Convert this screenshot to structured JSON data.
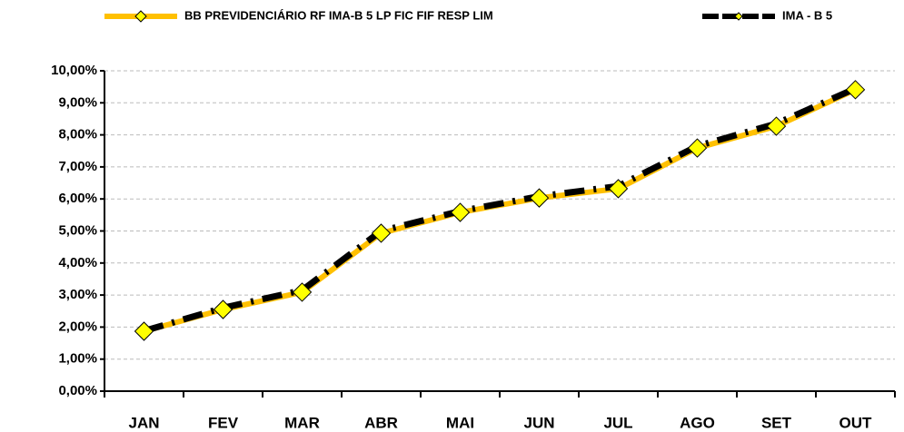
{
  "chart_data": {
    "type": "line",
    "categories": [
      "JAN",
      "FEV",
      "MAR",
      "ABR",
      "MAI",
      "JUN",
      "JUL",
      "AGO",
      "SET",
      "OUT"
    ],
    "series": [
      {
        "name": "BB PREVIDENCIÁRIO RF IMA-B 5 LP FIC FIF RESP LIM",
        "color": "#FFC000",
        "marker": "diamond",
        "marker_color": "#FFFF00",
        "values": [
          1.87,
          2.55,
          3.09,
          4.93,
          5.58,
          6.03,
          6.32,
          7.59,
          8.27,
          9.41
        ]
      },
      {
        "name": "IMA - B 5",
        "color": "#000000",
        "dashed": true,
        "values": [
          1.88,
          2.6,
          3.15,
          5.0,
          5.62,
          6.08,
          6.4,
          7.65,
          8.35,
          9.45
        ]
      }
    ],
    "ylim": [
      0,
      10
    ],
    "yticks": [
      {
        "value": 0,
        "label": "0,00%"
      },
      {
        "value": 1,
        "label": "1,00%"
      },
      {
        "value": 2,
        "label": "2,00%"
      },
      {
        "value": 3,
        "label": "3,00%"
      },
      {
        "value": 4,
        "label": "4,00%"
      },
      {
        "value": 5,
        "label": "5,00%"
      },
      {
        "value": 6,
        "label": "6,00%"
      },
      {
        "value": 7,
        "label": "7,00%"
      },
      {
        "value": 8,
        "label": "8,00%"
      },
      {
        "value": 9,
        "label": "9,00%"
      },
      {
        "value": 10,
        "label": "10,00%"
      }
    ],
    "grid": true,
    "legend": "top"
  }
}
